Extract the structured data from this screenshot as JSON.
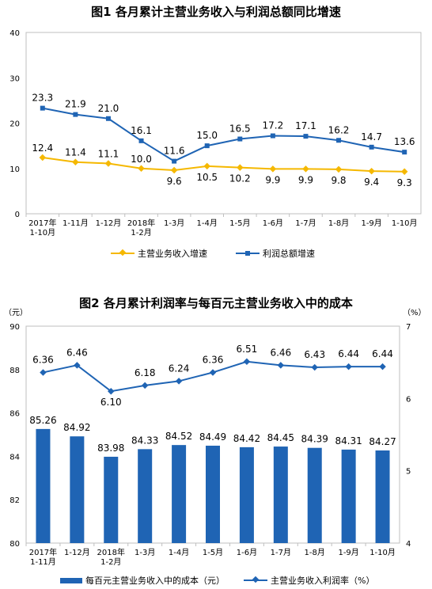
{
  "chart_data": [
    {
      "type": "line",
      "title": "图1  各月累计主营业务收入与利润总额同比增速",
      "categories": [
        "2017年\n1-10月",
        "1-11月",
        "1-12月",
        "2018年\n1-2月",
        "1-3月",
        "1-4月",
        "1-5月",
        "1-6月",
        "1-7月",
        "1-8月",
        "1-9月",
        "1-10月"
      ],
      "ylim": [
        0,
        40
      ],
      "yticks": [
        0,
        10,
        20,
        30,
        40
      ],
      "grid": false,
      "legend_position": "bottom",
      "series": [
        {
          "name": "主营业务收入增速",
          "color": "#f5b800",
          "marker": "diamond",
          "values": [
            12.4,
            11.4,
            11.1,
            10.0,
            9.6,
            10.5,
            10.2,
            9.9,
            9.9,
            9.8,
            9.4,
            9.3
          ],
          "labels": [
            "12.4",
            "11.4",
            "11.1",
            "10.0",
            "9.6",
            "10.5",
            "10.2",
            "9.9",
            "9.9",
            "9.8",
            "9.4",
            "9.3"
          ]
        },
        {
          "name": "利润总额增速",
          "color": "#1f64b4",
          "marker": "square",
          "values": [
            23.3,
            21.9,
            21.0,
            16.1,
            11.6,
            15.0,
            16.5,
            17.2,
            17.1,
            16.2,
            14.7,
            13.6
          ],
          "labels": [
            "23.3",
            "21.9",
            "21.0",
            "16.1",
            "11.6",
            "15.0",
            "16.5",
            "17.2",
            "17.1",
            "16.2",
            "14.7",
            "13.6"
          ]
        }
      ]
    },
    {
      "type": "bar",
      "title": "图2  各月累计利润率与每百元主营业务收入中的成本",
      "categories": [
        "2017年\n1-11月",
        "1-12月",
        "2018年\n1-2月",
        "1-3月",
        "1-4月",
        "1-5月",
        "1-6月",
        "1-7月",
        "1-8月",
        "1-9月",
        "1-10月"
      ],
      "left_unit": "（元）",
      "right_unit": "（%）",
      "ylim": [
        80,
        90
      ],
      "yticks": [
        80,
        82,
        84,
        86,
        88,
        90
      ],
      "y2lim": [
        4,
        7
      ],
      "y2ticks": [
        4,
        5,
        6,
        7
      ],
      "grid": false,
      "legend_position": "bottom",
      "series": [
        {
          "name": "每百元主营业务收入中的成本（元）",
          "type": "bar",
          "axis": "left",
          "color": "#1f64b4",
          "values": [
            85.26,
            84.92,
            83.98,
            84.33,
            84.52,
            84.49,
            84.42,
            84.45,
            84.39,
            84.31,
            84.27
          ],
          "labels": [
            "85.26",
            "84.92",
            "83.98",
            "84.33",
            "84.52",
            "84.49",
            "84.42",
            "84.45",
            "84.39",
            "84.31",
            "84.27"
          ]
        },
        {
          "name": "主营业务收入利润率（%）",
          "type": "line",
          "axis": "right",
          "color": "#1f64b4",
          "marker": "diamond",
          "values": [
            6.36,
            6.46,
            6.1,
            6.18,
            6.24,
            6.36,
            6.51,
            6.46,
            6.43,
            6.44,
            6.44
          ],
          "labels": [
            "6.36",
            "6.46",
            "6.10",
            "6.18",
            "6.24",
            "6.36",
            "6.51",
            "6.46",
            "6.43",
            "6.44",
            "6.44"
          ]
        }
      ]
    }
  ]
}
